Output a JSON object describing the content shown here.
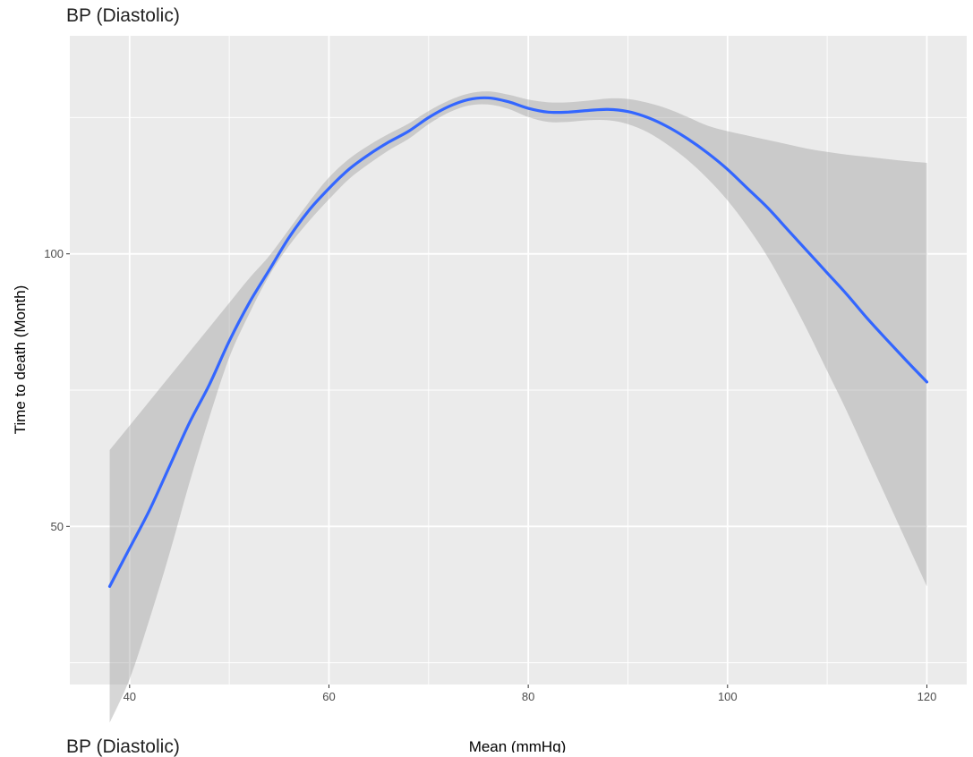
{
  "chart_data": {
    "type": "line",
    "title": "BP (Diastolic)",
    "xlabel": "Mean (mmHg)",
    "ylabel": "Time to death (Month)",
    "xlim": [
      34,
      124
    ],
    "ylim": [
      21,
      140
    ],
    "x_ticks": [
      40,
      60,
      80,
      100,
      120
    ],
    "y_ticks": [
      50,
      100
    ],
    "grid": true,
    "series": [
      {
        "type": "smooth",
        "color": "#3366FF",
        "x": [
          38,
          40,
          42,
          44,
          46,
          48,
          50,
          52,
          54,
          56,
          58,
          60,
          62,
          64,
          66,
          68,
          70,
          72,
          74,
          76,
          78,
          80,
          82,
          84,
          86,
          88,
          90,
          92,
          94,
          96,
          98,
          100,
          102,
          104,
          106,
          108,
          110,
          112,
          114,
          116,
          118,
          120
        ],
        "y": [
          39,
          46,
          53,
          61,
          69,
          76,
          84,
          91,
          97,
          103,
          108,
          112,
          115.5,
          118.2,
          120.5,
          122.5,
          125,
          127,
          128.3,
          128.6,
          127.9,
          126.7,
          126.0,
          126.0,
          126.3,
          126.5,
          126.1,
          125.0,
          123.3,
          121.1,
          118.5,
          115.5,
          112,
          108.5,
          104.5,
          100.5,
          96.5,
          92.5,
          88.2,
          84.2,
          80.3,
          76.5
        ],
        "ci_lower": [
          14,
          22,
          33,
          45,
          58,
          70,
          81,
          89,
          96,
          101.5,
          106,
          110,
          113.7,
          116.5,
          119,
          121.1,
          123.8,
          125.9,
          127.2,
          127.4,
          126.6,
          125.1,
          124.2,
          124.2,
          124.5,
          124.5,
          123.8,
          122.3,
          120,
          117.2,
          113.8,
          109.8,
          105,
          99.5,
          93,
          86,
          78.5,
          71,
          63,
          55,
          47,
          39
        ],
        "ci_upper": [
          64,
          68.5,
          73,
          77.5,
          82,
          86.5,
          91,
          95.5,
          99.6,
          104.5,
          109.5,
          114,
          117.4,
          119.9,
          122.0,
          123.9,
          126.2,
          128.1,
          129.4,
          129.8,
          129.2,
          128.3,
          127.8,
          127.8,
          128.1,
          128.5,
          128.4,
          127.7,
          126.6,
          125.1,
          123.5,
          122.5,
          121.7,
          120.9,
          120.1,
          119.3,
          118.7,
          118.2,
          117.8,
          117.4,
          117.0,
          116.7
        ]
      }
    ]
  },
  "bottom_cut_title": "BP (Diastolic)"
}
